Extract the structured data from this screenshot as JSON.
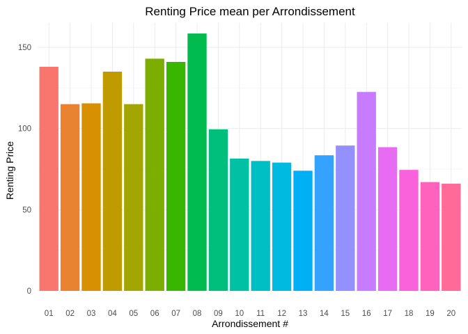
{
  "chart_data": {
    "type": "bar",
    "title": "Renting Price mean per Arrondissement",
    "xlabel": "Arrondissement #",
    "ylabel": "Renting Price",
    "categories": [
      "01",
      "02",
      "03",
      "04",
      "05",
      "06",
      "07",
      "08",
      "09",
      "10",
      "11",
      "12",
      "13",
      "14",
      "15",
      "16",
      "17",
      "18",
      "19",
      "20"
    ],
    "values": [
      138,
      115,
      115.5,
      135,
      115,
      143,
      141,
      158.5,
      99.5,
      81.5,
      80,
      79,
      74,
      83.5,
      89.5,
      122.5,
      88.5,
      74.5,
      67,
      66
    ],
    "ylim": [
      0,
      165
    ],
    "yticks": [
      0,
      50,
      100,
      150
    ],
    "colors": [
      "#F8766D",
      "#EA8331",
      "#D89000",
      "#C09B00",
      "#A3A500",
      "#7CAE00",
      "#39B600",
      "#00BB4E",
      "#00BF7D",
      "#00C1A3",
      "#00BFC4",
      "#00BAE0",
      "#00B0F6",
      "#35A2FF",
      "#9590FF",
      "#C77CFF",
      "#E76BF3",
      "#FA62DB",
      "#FF62BC",
      "#FF6A98"
    ],
    "grid": true,
    "legend": "none"
  }
}
